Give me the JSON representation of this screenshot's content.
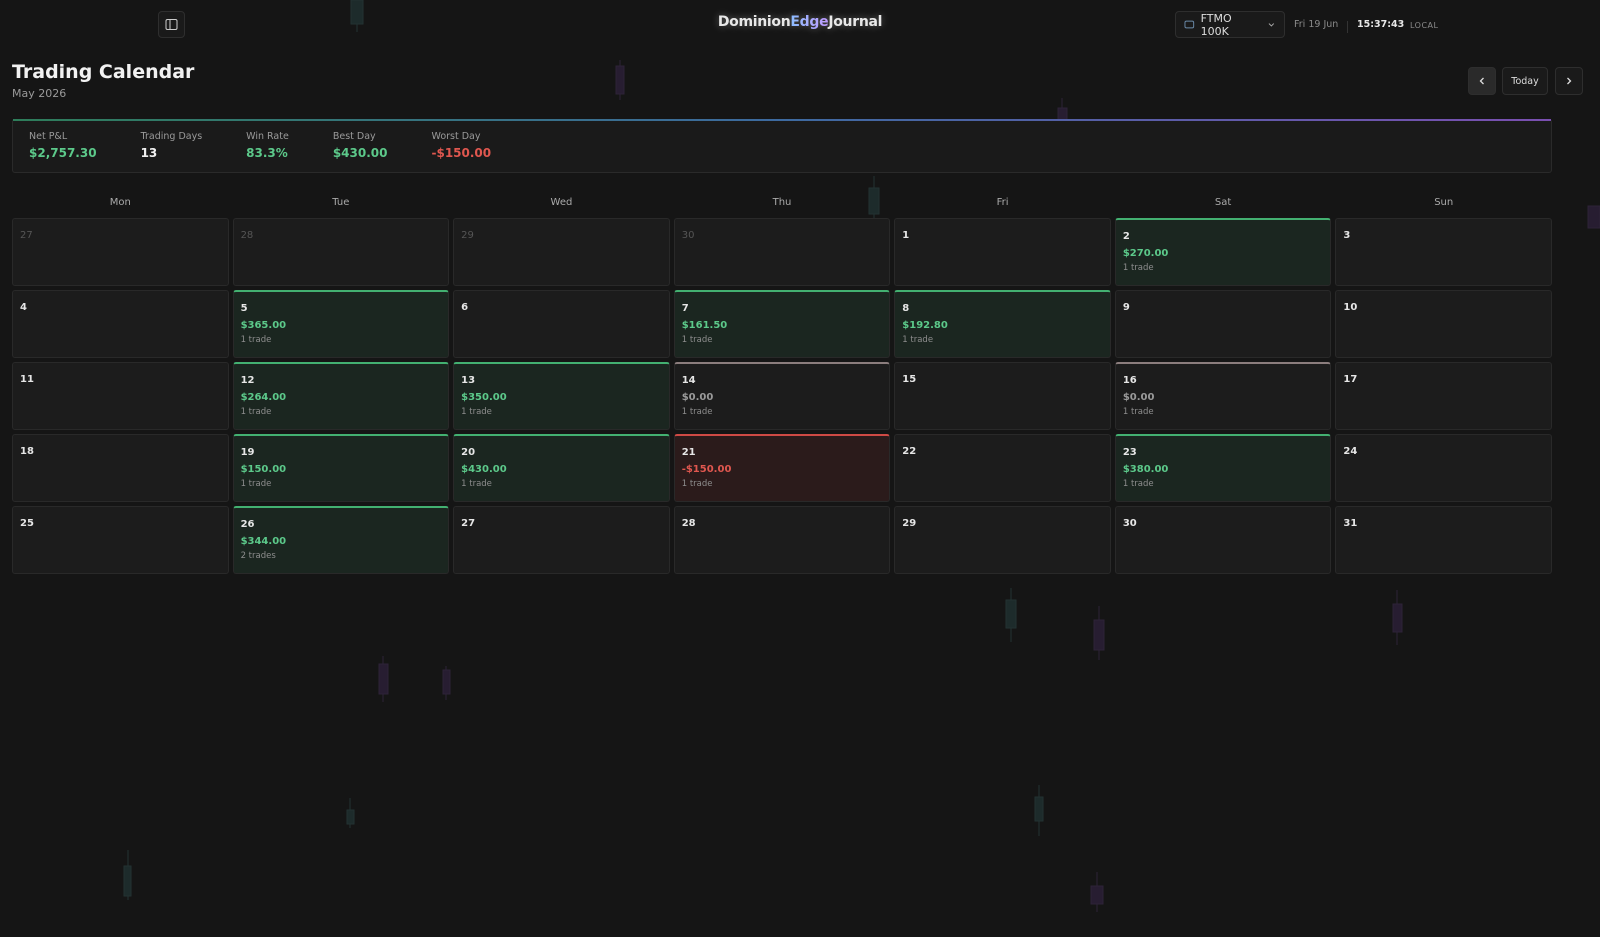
{
  "header": {
    "brand": [
      "Dominion",
      "Edge",
      "Journal"
    ],
    "account": "FTMO 100K",
    "date": "Fri 19 Jun",
    "time": "15:37:43",
    "zone": "LOCAL"
  },
  "page": {
    "title": "Trading Calendar",
    "subtitle": "May 2026",
    "today": "Today"
  },
  "stats": [
    {
      "label": "Net P&L",
      "value": "$2,757.30",
      "tone": "win"
    },
    {
      "label": "Trading Days",
      "value": "13",
      "tone": "neutral"
    },
    {
      "label": "Win Rate",
      "value": "83.3%",
      "tone": "win"
    },
    {
      "label": "Best Day",
      "value": "$430.00",
      "tone": "win"
    },
    {
      "label": "Worst Day",
      "value": "-$150.00",
      "tone": "loss"
    }
  ],
  "weekdays": [
    "Mon",
    "Tue",
    "Wed",
    "Thu",
    "Fri",
    "Sat",
    "Sun"
  ],
  "weeks": [
    [
      {
        "day": 27,
        "muted": true
      },
      {
        "day": 28,
        "muted": true
      },
      {
        "day": 29,
        "muted": true
      },
      {
        "day": 30,
        "muted": true
      },
      {
        "day": 1
      },
      {
        "day": 2,
        "pnl": "$270.00",
        "trades": "1 trade",
        "tone": "win"
      },
      {
        "day": 3
      }
    ],
    [
      {
        "day": 4
      },
      {
        "day": 5,
        "pnl": "$365.00",
        "trades": "1 trade",
        "tone": "win"
      },
      {
        "day": 6
      },
      {
        "day": 7,
        "pnl": "$161.50",
        "trades": "1 trade",
        "tone": "win"
      },
      {
        "day": 8,
        "pnl": "$192.80",
        "trades": "1 trade",
        "tone": "win"
      },
      {
        "day": 9
      },
      {
        "day": 10
      }
    ],
    [
      {
        "day": 11
      },
      {
        "day": 12,
        "pnl": "$264.00",
        "trades": "1 trade",
        "tone": "win"
      },
      {
        "day": 13,
        "pnl": "$350.00",
        "trades": "1 trade",
        "tone": "win"
      },
      {
        "day": 14,
        "pnl": "$0.00",
        "trades": "1 trade",
        "tone": "flat"
      },
      {
        "day": 15
      },
      {
        "day": 16,
        "pnl": "$0.00",
        "trades": "1 trade",
        "tone": "flat"
      },
      {
        "day": 17
      }
    ],
    [
      {
        "day": 18
      },
      {
        "day": 19,
        "pnl": "$150.00",
        "trades": "1 trade",
        "tone": "win"
      },
      {
        "day": 20,
        "pnl": "$430.00",
        "trades": "1 trade",
        "tone": "win"
      },
      {
        "day": 21,
        "pnl": "-$150.00",
        "trades": "1 trade",
        "tone": "loss"
      },
      {
        "day": 22
      },
      {
        "day": 23,
        "pnl": "$380.00",
        "trades": "1 trade",
        "tone": "win"
      },
      {
        "day": 24
      }
    ],
    [
      {
        "day": 25
      },
      {
        "day": 26,
        "pnl": "$344.00",
        "trades": "2 trades",
        "tone": "win"
      },
      {
        "day": 27
      },
      {
        "day": 28
      },
      {
        "day": 29
      },
      {
        "day": 30
      },
      {
        "day": 31
      }
    ]
  ]
}
